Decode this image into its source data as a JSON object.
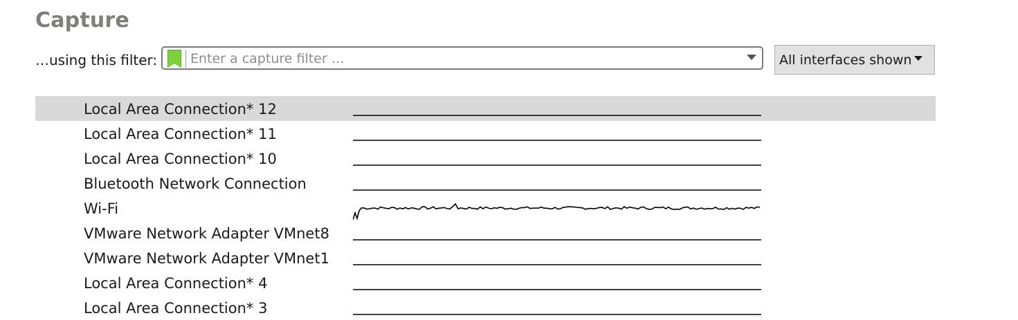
{
  "page": {
    "title": "Capture"
  },
  "filter": {
    "label": "…using this filter:",
    "placeholder": "Enter a capture filter …",
    "value": "",
    "bookmark_icon": "bookmark-icon",
    "bookmark_color": "#7bd23b"
  },
  "interfaces_button": {
    "label": "All interfaces shown"
  },
  "interfaces": [
    {
      "name": "Local Area Connection* 12",
      "selected": true,
      "traffic": "flat"
    },
    {
      "name": "Local Area Connection* 11",
      "selected": false,
      "traffic": "flat"
    },
    {
      "name": "Local Area Connection* 10",
      "selected": false,
      "traffic": "flat"
    },
    {
      "name": "Bluetooth Network Connection",
      "selected": false,
      "traffic": "flat"
    },
    {
      "name": "Wi-Fi",
      "selected": false,
      "traffic": "active"
    },
    {
      "name": "VMware Network Adapter VMnet8",
      "selected": false,
      "traffic": "flat"
    },
    {
      "name": "VMware Network Adapter VMnet1",
      "selected": false,
      "traffic": "flat"
    },
    {
      "name": "Local Area Connection* 4",
      "selected": false,
      "traffic": "flat"
    },
    {
      "name": "Local Area Connection* 3",
      "selected": false,
      "traffic": "flat"
    }
  ],
  "colors": {
    "title": "#7f7f78",
    "selected_row": "#d9d9d9",
    "sparkline": "#000000"
  }
}
